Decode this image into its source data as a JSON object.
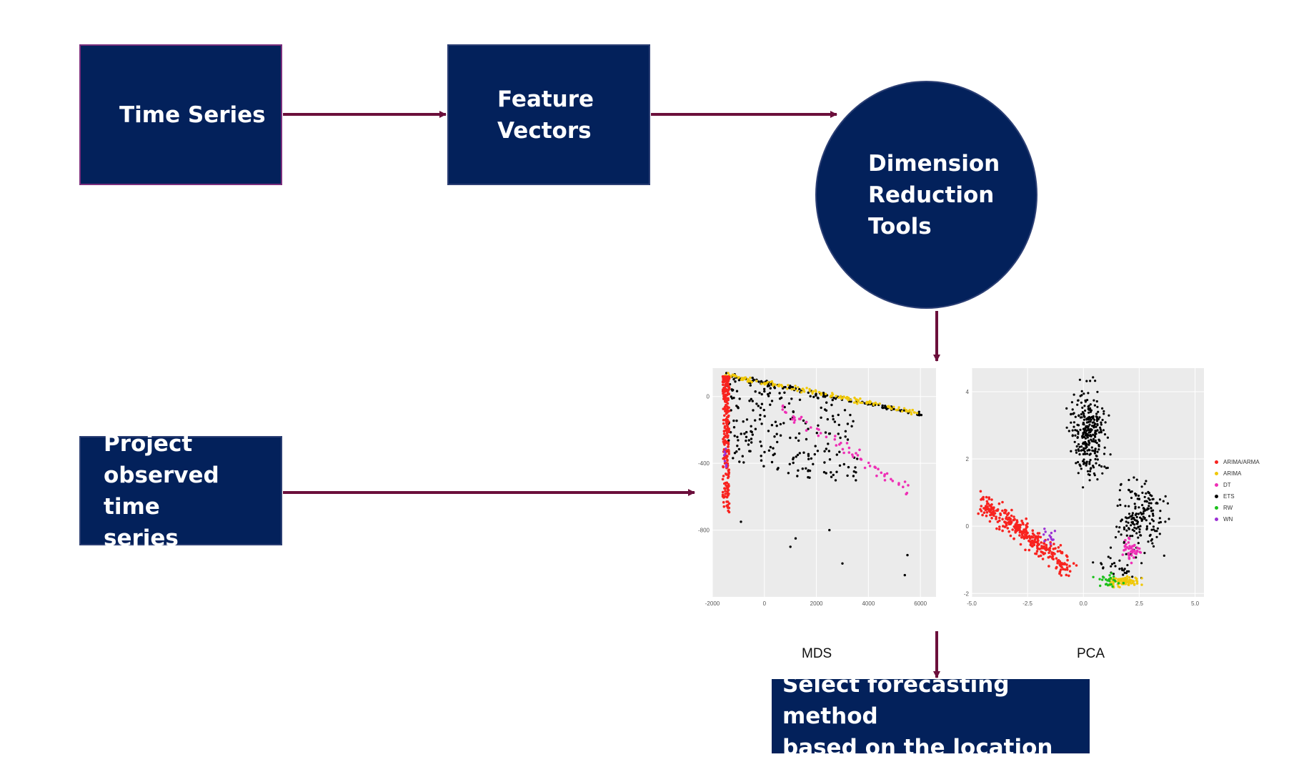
{
  "nodes": {
    "time_series": {
      "lines": [
        "Time Series"
      ]
    },
    "feature_vectors": {
      "lines": [
        "Feature",
        "Vectors"
      ]
    },
    "dimension_reduction": {
      "lines": [
        "Dimension",
        "Reduction",
        "Tools"
      ]
    },
    "project": {
      "lines": [
        "Project",
        "observed time",
        "series"
      ]
    },
    "select": {
      "lines": [
        "Select forecasting method",
        "based on the location"
      ]
    }
  },
  "colors": {
    "node_fill": "#03215b",
    "arrow": "#6b0f3b",
    "panel_bg": "#ebebeb",
    "grid": "#ffffff"
  },
  "plots": {
    "mds": {
      "label": "MDS",
      "xlim": [
        -2000,
        6600
      ],
      "ylim": [
        -1200,
        170
      ],
      "xticks": [
        "-2000",
        "0",
        "2000",
        "4000",
        "6000"
      ],
      "yticks": [
        "0",
        "-400",
        "-800"
      ]
    },
    "pca": {
      "label": "PCA",
      "xlim": [
        -5.0,
        5.4
      ],
      "ylim": [
        -2.1,
        4.7
      ],
      "xticks": [
        "-5.0",
        "-2.5",
        "0.0",
        "2.5",
        "5.0"
      ],
      "yticks": [
        "4",
        "2",
        "0",
        "-2"
      ]
    }
  },
  "legend": [
    {
      "label": "ARIMA/ARMA",
      "color": "#f8231f"
    },
    {
      "label": "ARIMA",
      "color": "#f0c808"
    },
    {
      "label": "DT",
      "color": "#ee2fb5"
    },
    {
      "label": "ETS",
      "color": "#000000"
    },
    {
      "label": "RW",
      "color": "#1cc01c"
    },
    {
      "label": "WN",
      "color": "#9b2fd4"
    }
  ]
}
